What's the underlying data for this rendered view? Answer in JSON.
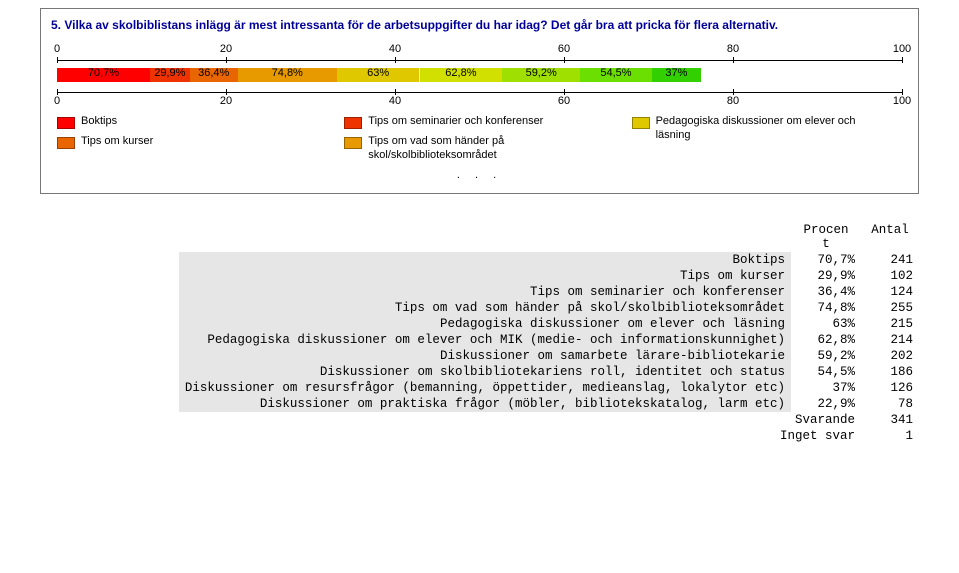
{
  "chart": {
    "title": "5. Vilka av skolbiblistans inlägg är mest intressanta för de arbetsuppgifter du har idag? Det går bra att pricka för flera alternativ.",
    "axis": {
      "min": 0,
      "max": 100,
      "step": 20
    },
    "bar": {
      "segments": [
        {
          "color": "#ff0000",
          "start": 0,
          "width": 11.0,
          "label": "70,7%"
        },
        {
          "color": "#ef3300",
          "start": 11.0,
          "width": 4.7,
          "label": "29,9%"
        },
        {
          "color": "#e86500",
          "start": 15.7,
          "width": 5.7,
          "label": "36,4%"
        },
        {
          "color": "#e69a00",
          "start": 21.4,
          "width": 11.7,
          "label": "74,8%"
        },
        {
          "color": "#e0c800",
          "start": 33.1,
          "width": 9.8,
          "label": "63%"
        },
        {
          "color": "#d2e000",
          "start": 42.9,
          "width": 9.8,
          "label": "62,8%"
        },
        {
          "color": "#a0e000",
          "start": 52.7,
          "width": 9.2,
          "label": "59,2%"
        },
        {
          "color": "#6be000",
          "start": 61.9,
          "width": 8.5,
          "label": "54,5%"
        },
        {
          "color": "#33d000",
          "start": 70.4,
          "width": 5.8,
          "label": "37%"
        }
      ]
    },
    "legend": {
      "col1": [
        {
          "color": "#ff0000",
          "label": "Boktips"
        },
        {
          "color": "#e86500",
          "label": "Tips om kurser"
        }
      ],
      "col2": [
        {
          "color": "#ef3300",
          "label": "Tips om seminarier och konferenser"
        },
        {
          "color": "#e69a00",
          "label": "Tips om vad som händer på skol/skolbiblioteksområdet"
        }
      ],
      "col3": [
        {
          "color": "#e0c800",
          "label": "Pedagogiska diskussioner om elever och läsning"
        }
      ]
    },
    "dots": ". . ."
  },
  "table": {
    "header": {
      "pct": "Procen\nt",
      "n": "Antal"
    },
    "rows": [
      {
        "label": "Boktips",
        "pct": "70,7%",
        "n": "241"
      },
      {
        "label": "Tips om kurser",
        "pct": "29,9%",
        "n": "102"
      },
      {
        "label": "Tips om seminarier och konferenser",
        "pct": "36,4%",
        "n": "124"
      },
      {
        "label": "Tips om vad som händer på skol/skolbiblioteksområdet",
        "pct": "74,8%",
        "n": "255"
      },
      {
        "label": "Pedagogiska diskussioner om elever och läsning",
        "pct": "63%",
        "n": "215"
      },
      {
        "label": "Pedagogiska diskussioner om elever och MIK (medie- och informationskunnighet)",
        "pct": "62,8%",
        "n": "214"
      },
      {
        "label": "Diskussioner om samarbete lärare-bibliotekarie",
        "pct": "59,2%",
        "n": "202"
      },
      {
        "label": "Diskussioner om skolbibliotekariens roll, identitet och status",
        "pct": "54,5%",
        "n": "186"
      },
      {
        "label": "Diskussioner om resursfrågor (bemanning, öppettider, medieanslag, lokalytor etc)",
        "pct": "37%",
        "n": "126"
      },
      {
        "label": "Diskussioner om praktiska frågor (möbler, bibliotekskatalog, larm etc)",
        "pct": "22,9%",
        "n": "78"
      }
    ],
    "footer": [
      {
        "label": "Svarande",
        "value": "341"
      },
      {
        "label": "Inget svar",
        "value": "1"
      }
    ]
  }
}
